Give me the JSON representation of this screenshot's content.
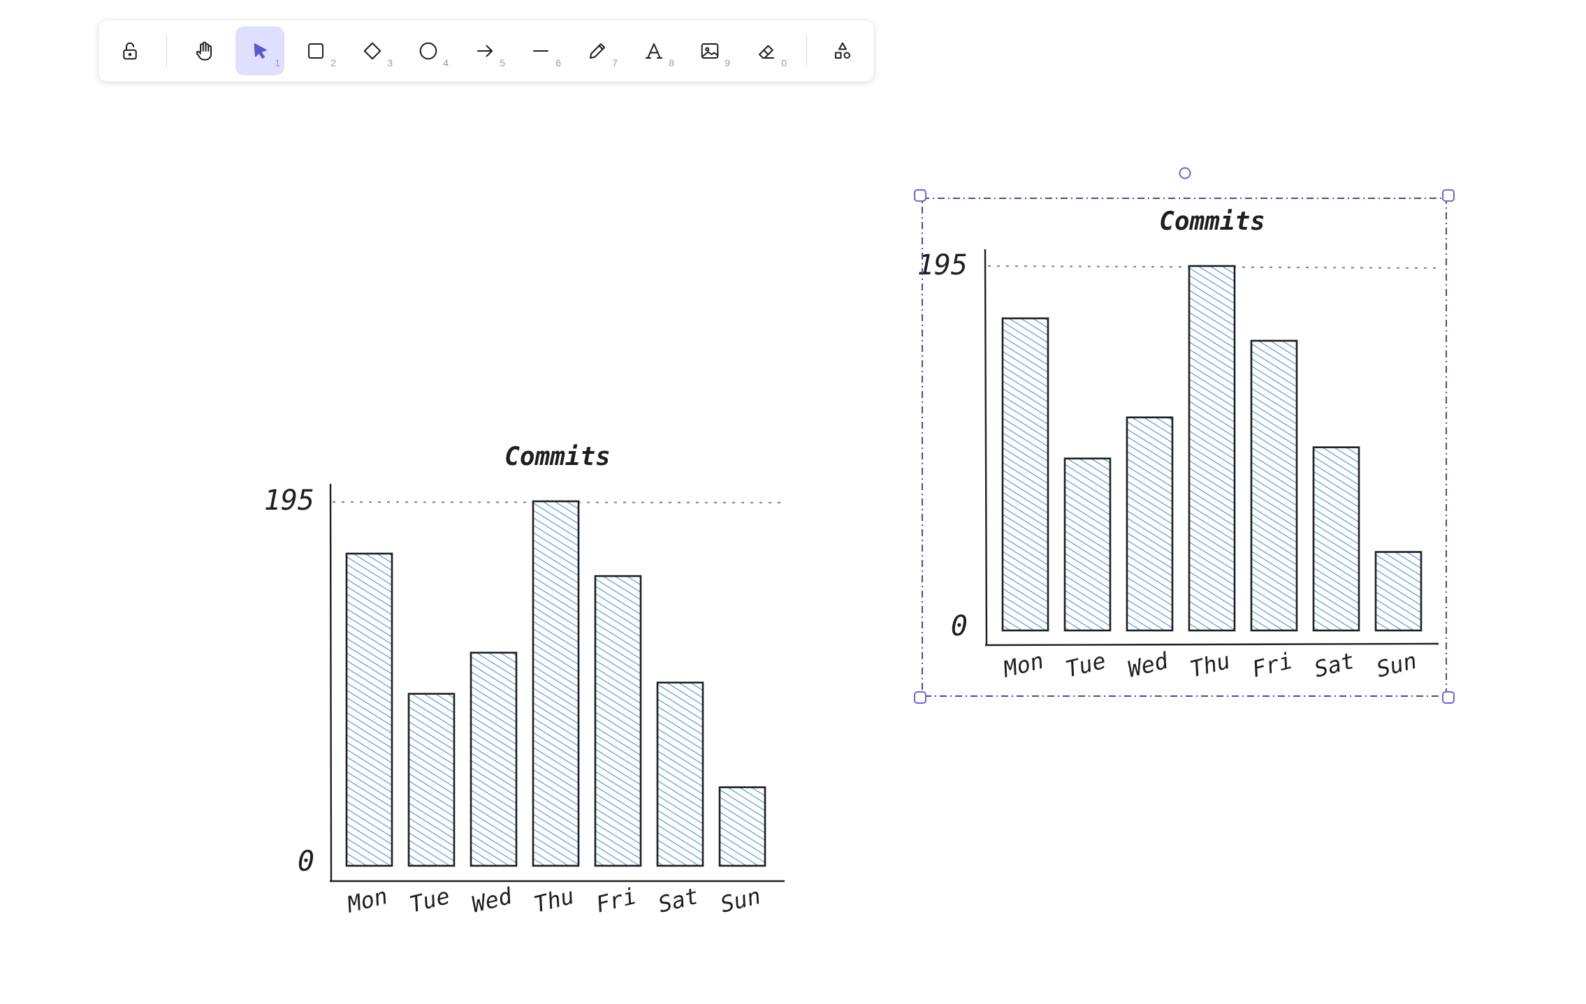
{
  "toolbar": {
    "tools": [
      {
        "name": "lock",
        "icon": "unlock-icon",
        "key": ""
      },
      {
        "name": "hand",
        "icon": "hand-icon",
        "key": ""
      },
      {
        "name": "selection",
        "icon": "pointer-icon",
        "key": "1"
      },
      {
        "name": "rectangle",
        "icon": "rectangle-icon",
        "key": "2"
      },
      {
        "name": "diamond",
        "icon": "diamond-icon",
        "key": "3"
      },
      {
        "name": "ellipse",
        "icon": "circle-icon",
        "key": "4"
      },
      {
        "name": "arrow",
        "icon": "arrow-icon",
        "key": "5"
      },
      {
        "name": "line",
        "icon": "line-icon",
        "key": "6"
      },
      {
        "name": "draw",
        "icon": "pencil-icon",
        "key": "7"
      },
      {
        "name": "text",
        "icon": "text-icon",
        "key": "8"
      },
      {
        "name": "image",
        "icon": "image-icon",
        "key": "9"
      },
      {
        "name": "eraser",
        "icon": "eraser-icon",
        "key": "0"
      },
      {
        "name": "more",
        "icon": "shapes-icon",
        "key": ""
      }
    ],
    "active_tool": "selection"
  },
  "colors": {
    "accent": "#6965db",
    "active_bg": "#e0dfff",
    "bar_fill": "#4a90d9",
    "ink": "#1e1e1e"
  },
  "chart_data": [
    {
      "type": "bar",
      "title": "Commits",
      "categories": [
        "Mon",
        "Tue",
        "Wed",
        "Thu",
        "Fri",
        "Sat",
        "Sun"
      ],
      "values": [
        167,
        92,
        114,
        195,
        155,
        98,
        42
      ],
      "y_top_label": "195",
      "y_bottom_label": "0",
      "ylim": [
        0,
        195
      ],
      "selected": false
    },
    {
      "type": "bar",
      "title": "Commits",
      "categories": [
        "Mon",
        "Tue",
        "Wed",
        "Thu",
        "Fri",
        "Sat",
        "Sun"
      ],
      "values": [
        167,
        92,
        114,
        195,
        155,
        98,
        42
      ],
      "y_top_label": "195",
      "y_bottom_label": "0",
      "ylim": [
        0,
        195
      ],
      "selected": true
    }
  ]
}
